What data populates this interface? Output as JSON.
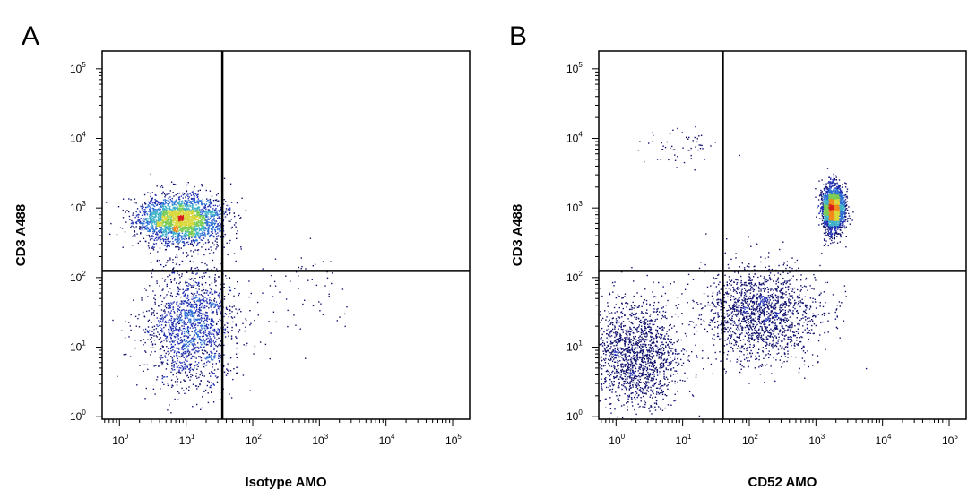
{
  "chart_data": [
    {
      "type": "scatter",
      "panel_label": "A",
      "xlabel": "Isotype AMO",
      "ylabel": "CD3 A488",
      "xscale": "log",
      "yscale": "log",
      "xlim": [
        0.55,
        180000
      ],
      "ylim": [
        0.92,
        180000
      ],
      "x_ticks": [
        {
          "base": "10",
          "exp": "0",
          "value": 1
        },
        {
          "base": "10",
          "exp": "1",
          "value": 10
        },
        {
          "base": "10",
          "exp": "2",
          "value": 100
        },
        {
          "base": "10",
          "exp": "3",
          "value": 1000
        },
        {
          "base": "10",
          "exp": "4",
          "value": 10000
        },
        {
          "base": "10",
          "exp": "5",
          "value": 100000
        }
      ],
      "y_ticks": [
        {
          "base": "10",
          "exp": "0",
          "value": 1
        },
        {
          "base": "10",
          "exp": "1",
          "value": 10
        },
        {
          "base": "10",
          "exp": "2",
          "value": 100
        },
        {
          "base": "10",
          "exp": "3",
          "value": 1000
        },
        {
          "base": "10",
          "exp": "4",
          "value": 10000
        },
        {
          "base": "10",
          "exp": "5",
          "value": 100000
        }
      ],
      "gate": {
        "x": 35,
        "y": 125
      },
      "populations": [
        {
          "name": "CD3+ / isotype-",
          "center": [
            8,
            700
          ],
          "spread_log": [
            0.32,
            0.17
          ],
          "density": "high"
        },
        {
          "name": "CD3- / isotype-",
          "center": [
            12,
            20
          ],
          "spread_log": [
            0.35,
            0.45
          ],
          "density": "medium"
        },
        {
          "name": "scattered isotype+ events",
          "center": [
            600,
            60
          ],
          "spread_log": [
            0.4,
            0.3
          ],
          "density": "sparse"
        }
      ]
    },
    {
      "type": "scatter",
      "panel_label": "B",
      "xlabel": "CD52 AMO",
      "ylabel": "CD3 A488",
      "xscale": "log",
      "yscale": "log",
      "xlim": [
        0.55,
        180000
      ],
      "ylim": [
        0.92,
        180000
      ],
      "x_ticks": [
        {
          "base": "10",
          "exp": "0",
          "value": 1
        },
        {
          "base": "10",
          "exp": "1",
          "value": 10
        },
        {
          "base": "10",
          "exp": "2",
          "value": 100
        },
        {
          "base": "10",
          "exp": "3",
          "value": 1000
        },
        {
          "base": "10",
          "exp": "4",
          "value": 10000
        },
        {
          "base": "10",
          "exp": "5",
          "value": 100000
        }
      ],
      "y_ticks": [
        {
          "base": "10",
          "exp": "0",
          "value": 1
        },
        {
          "base": "10",
          "exp": "1",
          "value": 10
        },
        {
          "base": "10",
          "exp": "2",
          "value": 100
        },
        {
          "base": "10",
          "exp": "3",
          "value": 1000
        },
        {
          "base": "10",
          "exp": "4",
          "value": 10000
        },
        {
          "base": "10",
          "exp": "5",
          "value": 100000
        }
      ],
      "gate": {
        "x": 40,
        "y": 125
      },
      "populations": [
        {
          "name": "CD3+ / CD52+",
          "center": [
            1800,
            1000
          ],
          "spread_log": [
            0.08,
            0.16
          ],
          "density": "high"
        },
        {
          "name": "CD3- / CD52- low",
          "center": [
            2,
            8
          ],
          "spread_log": [
            0.35,
            0.4
          ],
          "density": "medium"
        },
        {
          "name": "CD3- / CD52 dim",
          "center": [
            150,
            30
          ],
          "spread_log": [
            0.45,
            0.35
          ],
          "density": "medium"
        },
        {
          "name": "sparse high events",
          "center": [
            8,
            8000
          ],
          "spread_log": [
            0.3,
            0.15
          ],
          "density": "sparse"
        }
      ]
    }
  ]
}
